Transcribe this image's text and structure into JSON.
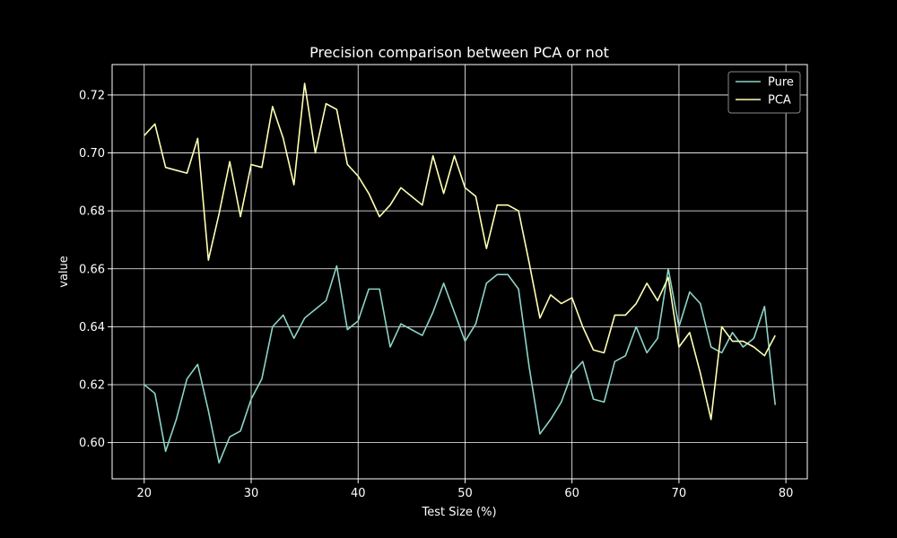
{
  "chart_data": {
    "type": "line",
    "title": "Precision comparison between PCA or not",
    "xlabel": "Test Size (%)",
    "ylabel": "value",
    "xlim": [
      17,
      82
    ],
    "ylim": [
      0.5875,
      0.7305
    ],
    "xticks": [
      20,
      30,
      40,
      50,
      60,
      70,
      80
    ],
    "yticks": [
      0.6,
      0.62,
      0.64,
      0.66,
      0.68,
      0.7,
      0.72
    ],
    "grid": true,
    "legend": "top-right",
    "x": [
      20,
      21,
      22,
      23,
      24,
      25,
      26,
      27,
      28,
      29,
      30,
      31,
      32,
      33,
      34,
      35,
      36,
      37,
      38,
      39,
      40,
      41,
      42,
      43,
      44,
      45,
      46,
      47,
      48,
      49,
      50,
      51,
      52,
      53,
      54,
      55,
      56,
      57,
      58,
      59,
      60,
      61,
      62,
      63,
      64,
      65,
      66,
      67,
      68,
      69,
      70,
      71,
      72,
      73,
      74,
      75,
      76,
      77,
      78,
      79
    ],
    "series": [
      {
        "name": "Pure",
        "color": "#8dd3c7",
        "values": [
          0.62,
          0.617,
          0.597,
          0.608,
          0.622,
          0.627,
          0.611,
          0.593,
          0.602,
          0.604,
          0.615,
          0.622,
          0.64,
          0.644,
          0.636,
          0.643,
          0.646,
          0.649,
          0.661,
          0.639,
          0.642,
          0.653,
          0.653,
          0.633,
          0.641,
          0.639,
          0.637,
          0.645,
          0.655,
          0.645,
          0.635,
          0.641,
          0.655,
          0.658,
          0.658,
          0.653,
          0.626,
          0.603,
          0.608,
          0.614,
          0.624,
          0.628,
          0.615,
          0.614,
          0.628,
          0.63,
          0.64,
          0.631,
          0.636,
          0.66,
          0.64,
          0.652,
          0.648,
          0.633,
          0.631,
          0.638,
          0.633,
          0.636,
          0.647,
          0.613
        ]
      },
      {
        "name": "PCA",
        "color": "#ffffb3",
        "values": [
          0.706,
          0.71,
          0.695,
          0.694,
          0.693,
          0.705,
          0.663,
          0.679,
          0.697,
          0.678,
          0.696,
          0.695,
          0.716,
          0.705,
          0.689,
          0.724,
          0.7,
          0.717,
          0.715,
          0.696,
          0.692,
          0.686,
          0.678,
          0.682,
          0.688,
          0.685,
          0.682,
          0.699,
          0.686,
          0.699,
          0.688,
          0.685,
          0.667,
          0.682,
          0.682,
          0.68,
          0.662,
          0.643,
          0.651,
          0.648,
          0.65,
          0.64,
          0.632,
          0.631,
          0.644,
          0.644,
          0.648,
          0.655,
          0.649,
          0.657,
          0.633,
          0.638,
          0.624,
          0.608,
          0.64,
          0.635,
          0.635,
          0.633,
          0.63,
          0.637
        ]
      }
    ]
  }
}
